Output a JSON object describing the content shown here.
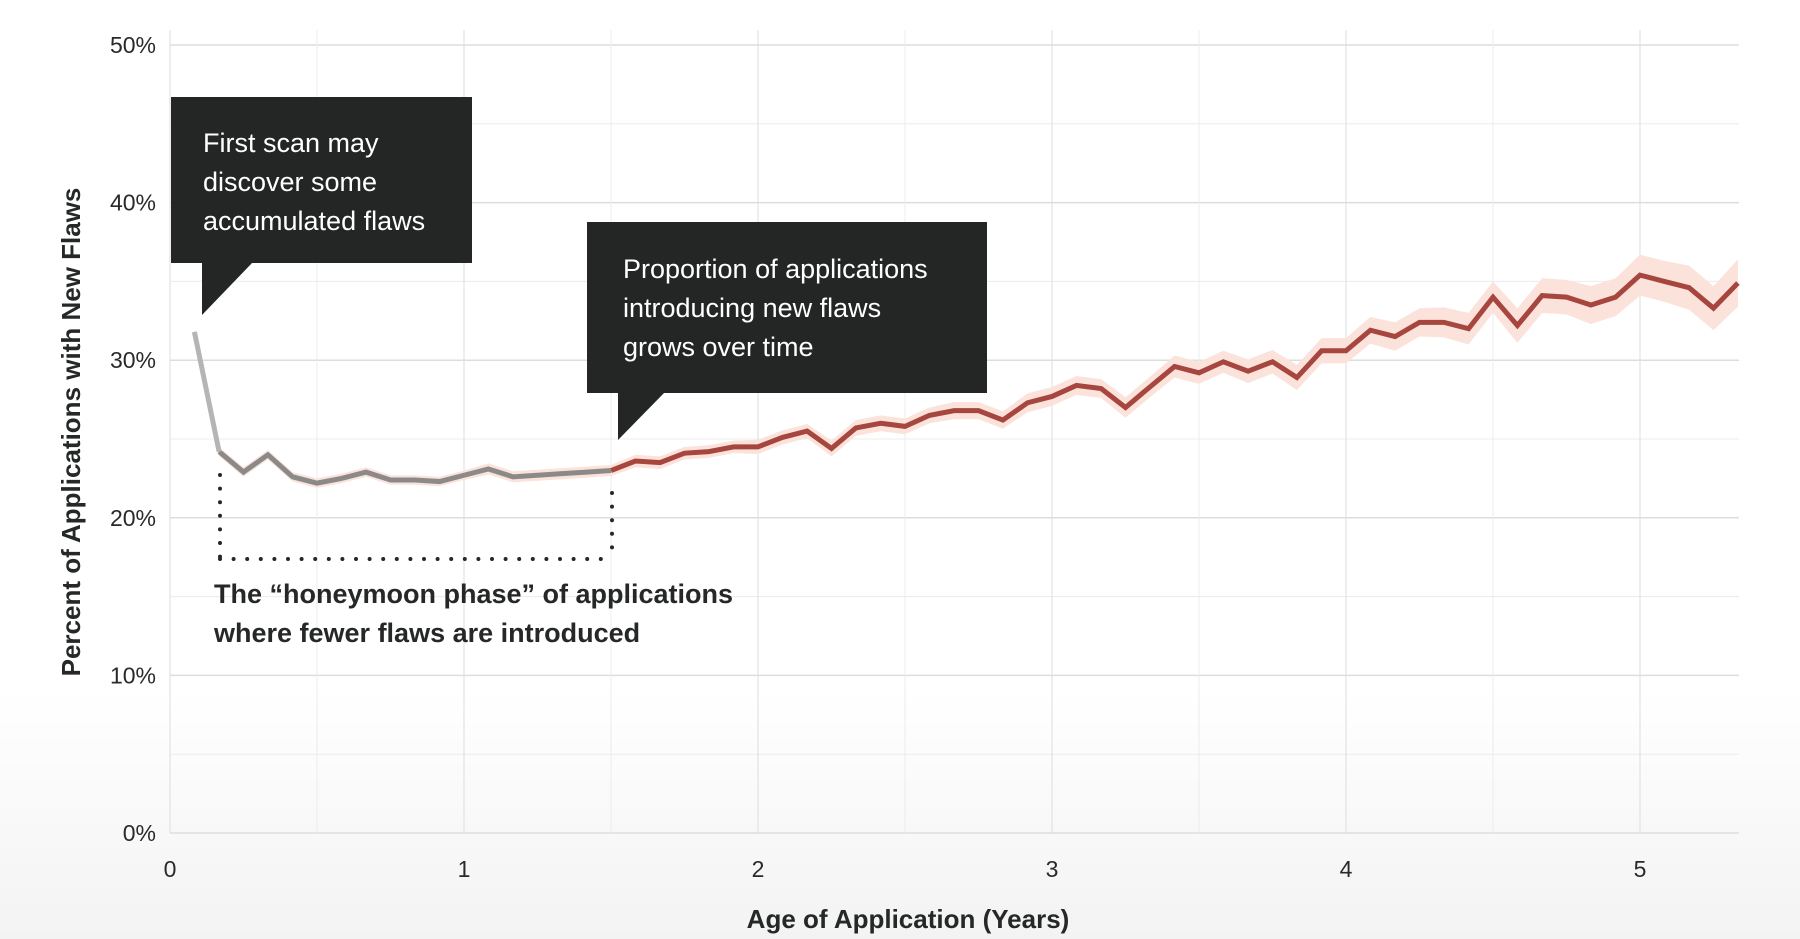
{
  "chart_data": {
    "type": "line",
    "title": "",
    "xlabel": "Age of Application (Years)",
    "ylabel": "Percent of Applications with New Flaws",
    "xlim": [
      0,
      5.33
    ],
    "ylim": [
      0,
      50
    ],
    "x_ticks": [
      0,
      1,
      2,
      3,
      4,
      5
    ],
    "x_tick_labels": [
      "0",
      "1",
      "2",
      "3",
      "4",
      "5"
    ],
    "y_ticks": [
      0,
      10,
      20,
      30,
      40,
      50
    ],
    "y_tick_labels": [
      "0%",
      "10%",
      "20%",
      "30%",
      "40%",
      "50%"
    ],
    "grid": true,
    "legend": null,
    "x": [
      0.083,
      0.167,
      0.25,
      0.333,
      0.417,
      0.5,
      0.583,
      0.667,
      0.75,
      0.833,
      0.917,
      1.0,
      1.083,
      1.167,
      1.25,
      1.333,
      1.417,
      1.5,
      1.583,
      1.667,
      1.75,
      1.833,
      1.917,
      2.0,
      2.083,
      2.167,
      2.25,
      2.333,
      2.417,
      2.5,
      2.583,
      2.667,
      2.75,
      2.833,
      2.917,
      3.0,
      3.083,
      3.167,
      3.25,
      3.333,
      3.417,
      3.5,
      3.583,
      3.667,
      3.75,
      3.833,
      3.917,
      4.0,
      4.083,
      4.167,
      4.25,
      4.333,
      4.417,
      4.5,
      4.583,
      4.667,
      4.75,
      4.833,
      4.917,
      5.0,
      5.083,
      5.167,
      5.25,
      5.333
    ],
    "series": [
      {
        "name": "Percent of applications with new flaws",
        "values": [
          31.8,
          24.2,
          22.9,
          24.0,
          22.6,
          22.2,
          22.5,
          22.9,
          22.4,
          22.4,
          22.3,
          22.7,
          23.1,
          22.6,
          22.7,
          22.8,
          22.9,
          23.0,
          23.6,
          23.5,
          24.1,
          24.2,
          24.5,
          24.5,
          25.1,
          25.5,
          24.4,
          25.7,
          26.0,
          25.8,
          26.5,
          26.8,
          26.8,
          26.2,
          27.3,
          27.7,
          28.4,
          28.2,
          27.0,
          28.3,
          29.6,
          29.2,
          29.9,
          29.3,
          29.9,
          28.9,
          30.6,
          30.6,
          31.9,
          31.5,
          32.4,
          32.4,
          32.0,
          34.0,
          32.2,
          34.1,
          34.0,
          33.5,
          34.0,
          35.4,
          35.0,
          34.6,
          33.3,
          34.9
        ],
        "ci_halfwidth": [
          0.3,
          0.3,
          0.3,
          0.3,
          0.3,
          0.3,
          0.3,
          0.3,
          0.3,
          0.3,
          0.3,
          0.3,
          0.35,
          0.35,
          0.35,
          0.35,
          0.35,
          0.35,
          0.4,
          0.4,
          0.4,
          0.4,
          0.4,
          0.45,
          0.45,
          0.45,
          0.5,
          0.5,
          0.5,
          0.5,
          0.5,
          0.55,
          0.55,
          0.55,
          0.6,
          0.6,
          0.6,
          0.6,
          0.65,
          0.65,
          0.7,
          0.7,
          0.7,
          0.75,
          0.75,
          0.8,
          0.8,
          0.8,
          0.85,
          0.9,
          0.9,
          0.95,
          1.0,
          1.0,
          1.1,
          1.1,
          1.1,
          1.2,
          1.2,
          1.3,
          1.3,
          1.4,
          1.4,
          1.5
        ],
        "segments": {
          "first_scan": {
            "from_index": 0,
            "to_index": 1,
            "color": "#b5b5b5"
          },
          "honeymoon": {
            "from_index": 1,
            "to_index": 17,
            "color": "#8c8a88"
          },
          "growth": {
            "from_index": 17,
            "to_index": 63,
            "color": "#a6463f"
          }
        }
      }
    ],
    "annotations": [
      {
        "text": "First scan may discover some accumulated flaws",
        "type": "callout"
      },
      {
        "text": "Proportion of applications introducing new flaws grows over time",
        "type": "callout"
      },
      {
        "text": "The “honeymoon phase” of applications where fewer flaws are introduced",
        "type": "bracket",
        "x_range": [
          0.167,
          1.5
        ]
      }
    ]
  },
  "colors": {
    "line_red": "#a6463f",
    "band": "#fbe3db",
    "line_grey": "#8c8a88",
    "line_light_grey": "#b5b5b5",
    "callout_bg": "#242626",
    "text": "#262828",
    "grid_major": "#dddddd",
    "grid_minor": "#ececec"
  },
  "callouts": {
    "first_scan": {
      "lines": [
        "First scan may",
        "discover some",
        "accumulated flaws"
      ]
    },
    "growth": {
      "lines": [
        "Proportion of applications",
        "introducing new flaws",
        "grows over time"
      ]
    }
  },
  "honeymoon": {
    "lines": [
      "The “honeymoon phase” of applications",
      "where fewer flaws are introduced"
    ]
  }
}
